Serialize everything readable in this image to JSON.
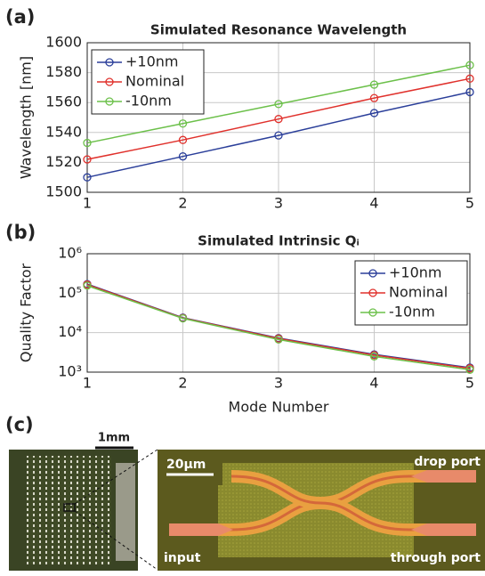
{
  "panel_labels": [
    "(a)",
    "(b)",
    "(c)"
  ],
  "chart_data": [
    {
      "type": "line",
      "title": "Simulated Resonance Wavelength",
      "ylabel": "Wavelength [nm]",
      "x": [
        1,
        2,
        3,
        4,
        5
      ],
      "xlim": [
        1,
        5
      ],
      "xticks": [
        1,
        2,
        3,
        4,
        5
      ],
      "ylim": [
        1500,
        1600
      ],
      "yticks": [
        1500,
        1520,
        1540,
        1560,
        1580,
        1600
      ],
      "log_y": false,
      "grid": true,
      "legend": "upper left",
      "series": [
        {
          "name": "+10nm",
          "color": "#2b3f9a",
          "values": [
            1510,
            1524,
            1538,
            1553,
            1567
          ]
        },
        {
          "name": "Nominal",
          "color": "#e0312c",
          "values": [
            1522,
            1535,
            1549,
            1563,
            1576
          ]
        },
        {
          "name": "-10nm",
          "color": "#6cc04a",
          "values": [
            1533,
            1546,
            1559,
            1572,
            1585
          ]
        }
      ]
    },
    {
      "type": "line",
      "title": "Simulated Intrinsic Qᵢ",
      "ylabel": "Quality Factor",
      "xlabel": "Mode Number",
      "x": [
        1,
        2,
        3,
        4,
        5
      ],
      "xlim": [
        1,
        5
      ],
      "xticks": [
        1,
        2,
        3,
        4,
        5
      ],
      "ylim": [
        1000,
        1000000
      ],
      "yticks": [
        {
          "value": 1000,
          "label": "10³"
        },
        {
          "value": 10000,
          "label": "10⁴"
        },
        {
          "value": 100000,
          "label": "10⁵"
        },
        {
          "value": 1000000,
          "label": "10⁶"
        }
      ],
      "log_y": true,
      "grid": true,
      "legend": "upper right",
      "series": [
        {
          "name": "+10nm",
          "color": "#2b3f9a",
          "values": [
            170000,
            24000,
            7300,
            2800,
            1300
          ]
        },
        {
          "name": "Nominal",
          "color": "#e0312c",
          "values": [
            165000,
            23500,
            7100,
            2700,
            1250
          ]
        },
        {
          "name": "-10nm",
          "color": "#6cc04a",
          "values": [
            155000,
            23000,
            6700,
            2500,
            1150
          ]
        }
      ]
    }
  ],
  "image_panel": {
    "scale_bar_chip": "1mm",
    "scale_bar_device": "20μm",
    "labels": [
      "drop port",
      "input",
      "through port"
    ]
  }
}
